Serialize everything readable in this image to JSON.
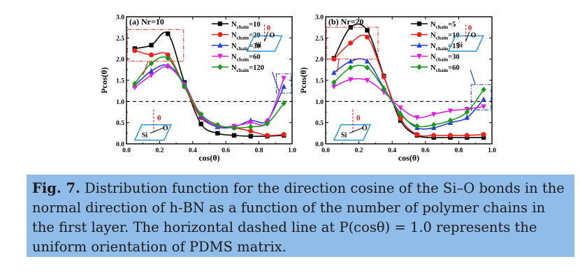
{
  "chart_data": [
    {
      "type": "line",
      "panel_label": "(a) Nr=10",
      "xlabel": "cos(θ)",
      "ylabel": "Pcos(θ)",
      "xlim": [
        0.0,
        1.0
      ],
      "ylim": [
        0.0,
        3.0
      ],
      "xticks": [
        "0.0",
        "0.2",
        "0.4",
        "0.6",
        "0.8",
        "1.0"
      ],
      "yticks": [
        "0.0",
        "0.5",
        "1.0",
        "1.5",
        "2.0",
        "2.5",
        "3.0"
      ],
      "reference_line": {
        "y": 1.0,
        "style": "dashed"
      },
      "legend_position": "top-right",
      "x": [
        0.05,
        0.15,
        0.25,
        0.35,
        0.45,
        0.55,
        0.65,
        0.75,
        0.85,
        0.95
      ],
      "series": [
        {
          "name_main": "N",
          "name_sub": "chain",
          "name_suffix": "=10",
          "color": "#000000",
          "marker": "square",
          "values": [
            2.25,
            2.33,
            2.6,
            1.45,
            0.47,
            0.25,
            0.2,
            0.18,
            0.18,
            0.2
          ]
        },
        {
          "name_main": "N",
          "name_sub": "chain",
          "name_suffix": "=20",
          "color": "#e8231e",
          "marker": "circle",
          "values": [
            2.2,
            2.1,
            2.1,
            1.35,
            0.62,
            0.42,
            0.38,
            0.3,
            0.2,
            0.22
          ]
        },
        {
          "name_main": "N",
          "name_sub": "chain",
          "name_suffix": "=30",
          "color": "#1f3fd8",
          "marker": "triangle-up",
          "values": [
            1.38,
            1.72,
            1.85,
            1.42,
            0.65,
            0.4,
            0.4,
            0.55,
            0.55,
            1.35
          ]
        },
        {
          "name_main": "N",
          "name_sub": "chain",
          "name_suffix": "=60",
          "color": "#e020e0",
          "marker": "triangle-down",
          "values": [
            1.33,
            1.62,
            1.82,
            1.4,
            0.68,
            0.42,
            0.42,
            0.5,
            0.52,
            1.55
          ]
        },
        {
          "name_main": "N",
          "name_sub": "chain",
          "name_suffix": "=120",
          "color": "#1a9a1a",
          "marker": "diamond",
          "values": [
            1.42,
            1.9,
            2.02,
            1.35,
            0.7,
            0.45,
            0.38,
            0.4,
            0.48,
            0.96
          ]
        }
      ],
      "insets": {
        "top_symbols": [
          "θ",
          "O",
          "Si"
        ],
        "bottom_symbols": [
          "θ",
          "Si",
          "O"
        ]
      }
    },
    {
      "type": "line",
      "panel_label": "(b) Nr=20",
      "xlabel": "cos(θ)",
      "ylabel": "Pcos(θ)",
      "xlim": [
        0.0,
        1.0
      ],
      "ylim": [
        0.0,
        3.0
      ],
      "xticks": [
        "0.0",
        "0.2",
        "0.4",
        "0.6",
        "0.8",
        "1.0"
      ],
      "yticks": [
        "0.0",
        "0.5",
        "1.0",
        "1.5",
        "2.0",
        "2.5",
        "3.0"
      ],
      "reference_line": {
        "y": 1.0,
        "style": "dashed"
      },
      "legend_position": "top-right",
      "x": [
        0.05,
        0.15,
        0.25,
        0.35,
        0.45,
        0.55,
        0.65,
        0.75,
        0.85,
        0.95
      ],
      "series": [
        {
          "name_main": "N",
          "name_sub": "chain",
          "name_suffix": "=5",
          "color": "#000000",
          "marker": "square",
          "values": [
            2.02,
            2.75,
            2.68,
            1.6,
            0.55,
            0.2,
            0.15,
            0.15,
            0.15,
            0.15
          ]
        },
        {
          "name_main": "N",
          "name_sub": "chain",
          "name_suffix": "=10",
          "color": "#e8231e",
          "marker": "circle",
          "values": [
            2.0,
            2.38,
            2.52,
            1.58,
            0.6,
            0.22,
            0.2,
            0.2,
            0.2,
            0.22
          ]
        },
        {
          "name_main": "N",
          "name_sub": "chain",
          "name_suffix": "=15",
          "color": "#1f3fd8",
          "marker": "triangle-up",
          "values": [
            1.68,
            1.95,
            1.95,
            1.32,
            0.72,
            0.38,
            0.38,
            0.5,
            0.62,
            1.05
          ]
        },
        {
          "name_main": "N",
          "name_sub": "chain",
          "name_suffix": "=30",
          "color": "#e020e0",
          "marker": "triangle-down",
          "values": [
            1.35,
            1.52,
            1.5,
            1.22,
            0.85,
            0.62,
            0.7,
            0.78,
            0.82,
            0.88
          ]
        },
        {
          "name_main": "N",
          "name_sub": "chain",
          "name_suffix": "=60",
          "color": "#1a9a1a",
          "marker": "diamond",
          "values": [
            1.45,
            1.8,
            1.8,
            1.3,
            0.7,
            0.42,
            0.45,
            0.55,
            0.75,
            1.28
          ]
        }
      ],
      "insets": {
        "top_symbols": [
          "θ",
          "O",
          "Si"
        ],
        "bottom_symbols": [
          "θ",
          "Si",
          "O"
        ]
      }
    }
  ],
  "caption": {
    "label": "Fig. 7.",
    "text": " Distribution function for the direction cosine of the Si–O bonds in the normal direction of h-BN as a function of the number of polymer chains in the first layer. The horizontal dashed line at P(cosθ) = 1.0 represents the uniform orientation of PDMS matrix."
  }
}
